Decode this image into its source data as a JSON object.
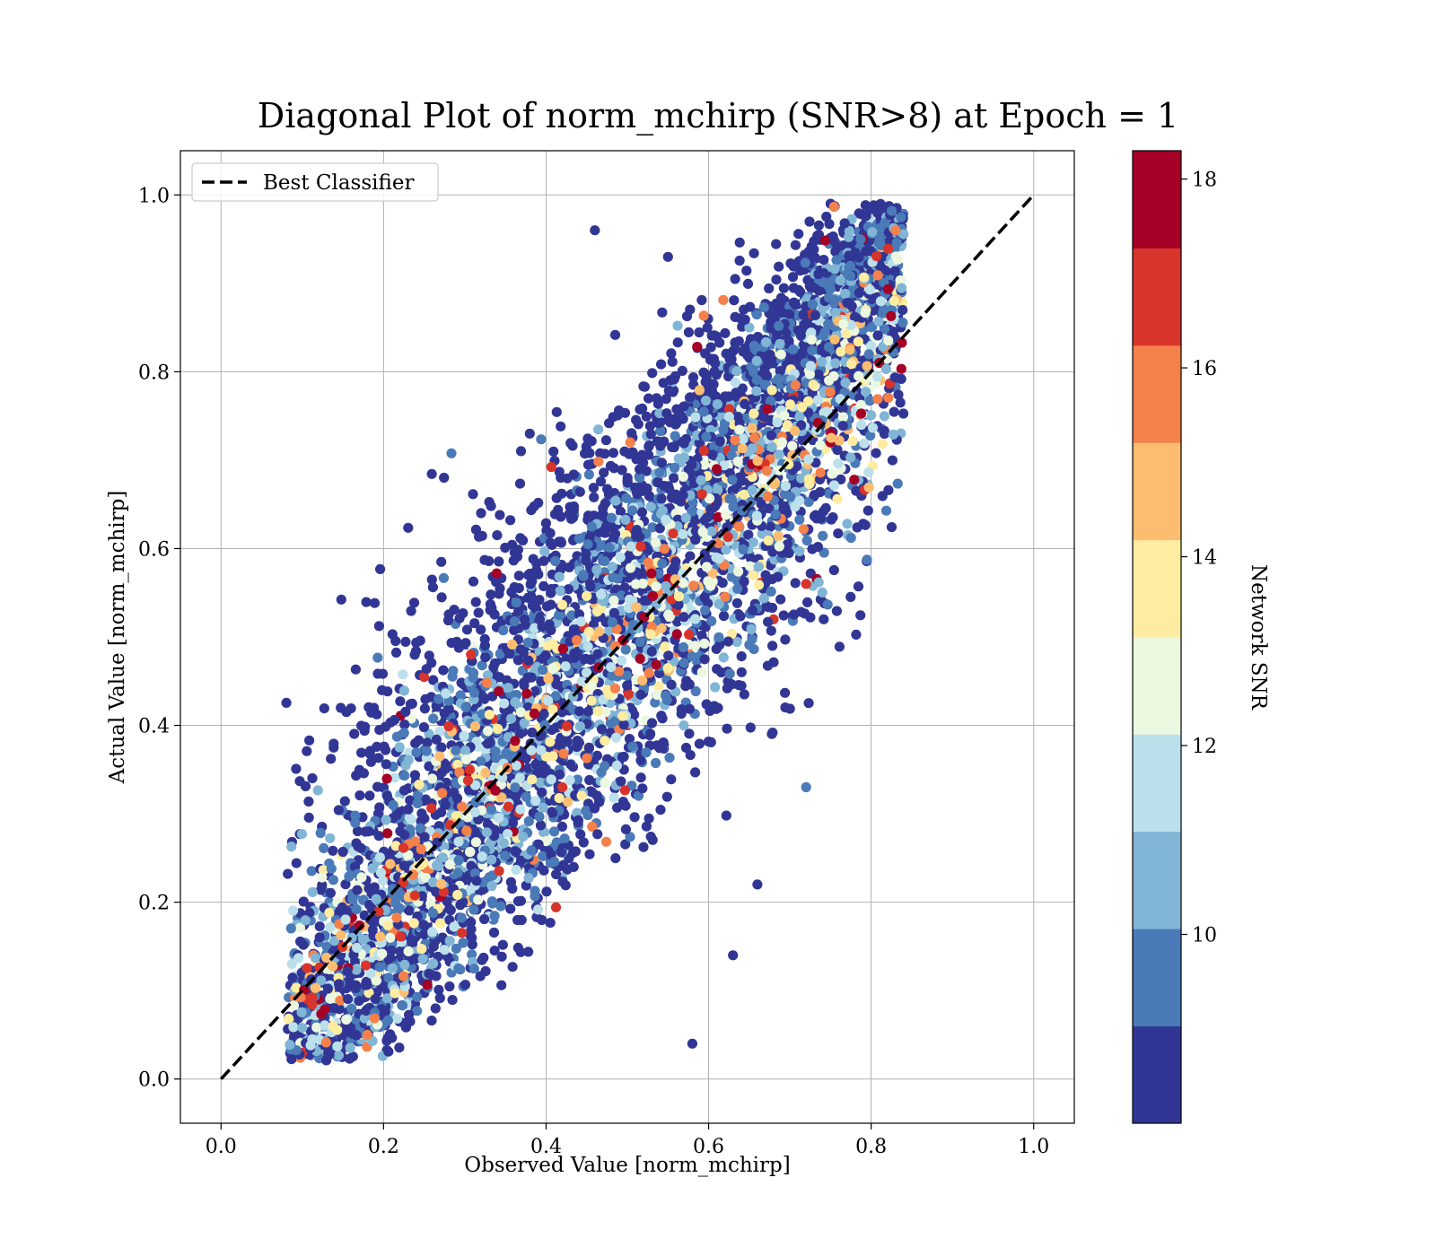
{
  "chart_data": {
    "type": "scatter",
    "title": "Diagonal Plot of norm_mchirp (SNR>8) at Epoch = 1",
    "xlabel": "Observed Value [norm_mchirp]",
    "ylabel": "Actual Value [norm_mchirp]",
    "xlim": [
      -0.05,
      1.05
    ],
    "ylim": [
      -0.05,
      1.05
    ],
    "xticks": [
      "0.0",
      "0.2",
      "0.4",
      "0.6",
      "0.8",
      "1.0"
    ],
    "yticks": [
      "0.0",
      "0.2",
      "0.4",
      "0.6",
      "0.8",
      "1.0"
    ],
    "grid": true,
    "legend": {
      "position": "upper-left",
      "entries": [
        {
          "label": "Best Classifier",
          "style": "dashed",
          "color": "#000000"
        }
      ]
    },
    "reference_line": {
      "label": "Best Classifier",
      "x": [
        0.0,
        1.0
      ],
      "y": [
        0.0,
        1.0
      ]
    },
    "colorbar": {
      "label": "Network SNR",
      "range": [
        8.0,
        18.3
      ],
      "ticks": [
        "10",
        "12",
        "14",
        "16",
        "18"
      ],
      "tick_values": [
        10,
        12,
        14,
        16,
        18
      ],
      "bands": [
        {
          "from": 8.0,
          "to": 9.03,
          "color": "#313695"
        },
        {
          "from": 9.03,
          "to": 10.06,
          "color": "#4a7ab7"
        },
        {
          "from": 10.06,
          "to": 11.09,
          "color": "#81b5d6"
        },
        {
          "from": 11.09,
          "to": 12.12,
          "color": "#bbe0ec"
        },
        {
          "from": 12.12,
          "to": 13.15,
          "color": "#ecf7e0"
        },
        {
          "from": 13.15,
          "to": 14.18,
          "color": "#feeca0"
        },
        {
          "from": 14.18,
          "to": 15.21,
          "color": "#fdbd70"
        },
        {
          "from": 15.21,
          "to": 16.24,
          "color": "#f4804c"
        },
        {
          "from": 16.24,
          "to": 17.27,
          "color": "#d7352b"
        },
        {
          "from": 17.27,
          "to": 18.3,
          "color": "#a50026"
        }
      ]
    },
    "series": [
      {
        "type": "scatter",
        "approx_count": 6000,
        "x_range": [
          0.08,
          0.84
        ],
        "y_range": [
          0.0,
          0.99
        ],
        "trend": "points scatter around y = x; lower spread for low values, widest spread around x ≈ 0.4–0.7",
        "sample_points": [
          {
            "x": 0.1,
            "y": 0.03,
            "snr": 16.8
          },
          {
            "x": 0.12,
            "y": 0.09,
            "snr": 17.6
          },
          {
            "x": 0.18,
            "y": 0.05,
            "snr": 15.8
          },
          {
            "x": 0.25,
            "y": 0.28,
            "snr": 17.2
          },
          {
            "x": 0.32,
            "y": 0.64,
            "snr": 8.5
          },
          {
            "x": 0.36,
            "y": 0.28,
            "snr": 17.8
          },
          {
            "x": 0.38,
            "y": 0.73,
            "snr": 8.5
          },
          {
            "x": 0.42,
            "y": 0.33,
            "snr": 17.0
          },
          {
            "x": 0.46,
            "y": 0.96,
            "snr": 8.5
          },
          {
            "x": 0.5,
            "y": 0.4,
            "snr": 16.8
          },
          {
            "x": 0.55,
            "y": 0.93,
            "snr": 8.5
          },
          {
            "x": 0.56,
            "y": 0.53,
            "snr": 17.0
          },
          {
            "x": 0.58,
            "y": 0.04,
            "snr": 8.6
          },
          {
            "x": 0.61,
            "y": 0.69,
            "snr": 17.5
          },
          {
            "x": 0.63,
            "y": 0.14,
            "snr": 8.5
          },
          {
            "x": 0.66,
            "y": 0.22,
            "snr": 8.5
          },
          {
            "x": 0.68,
            "y": 0.52,
            "snr": 16.9
          },
          {
            "x": 0.72,
            "y": 0.33,
            "snr": 9.5
          },
          {
            "x": 0.72,
            "y": 0.56,
            "snr": 17.0
          },
          {
            "x": 0.75,
            "y": 0.99,
            "snr": 8.6
          },
          {
            "x": 0.75,
            "y": 0.72,
            "snr": 17.8
          },
          {
            "x": 0.79,
            "y": 0.95,
            "snr": 17.5
          },
          {
            "x": 0.81,
            "y": 0.81,
            "snr": 18.0
          },
          {
            "x": 0.83,
            "y": 0.96,
            "snr": 15.9
          },
          {
            "x": 0.84,
            "y": 0.87,
            "snr": 12.5
          }
        ]
      }
    ]
  }
}
